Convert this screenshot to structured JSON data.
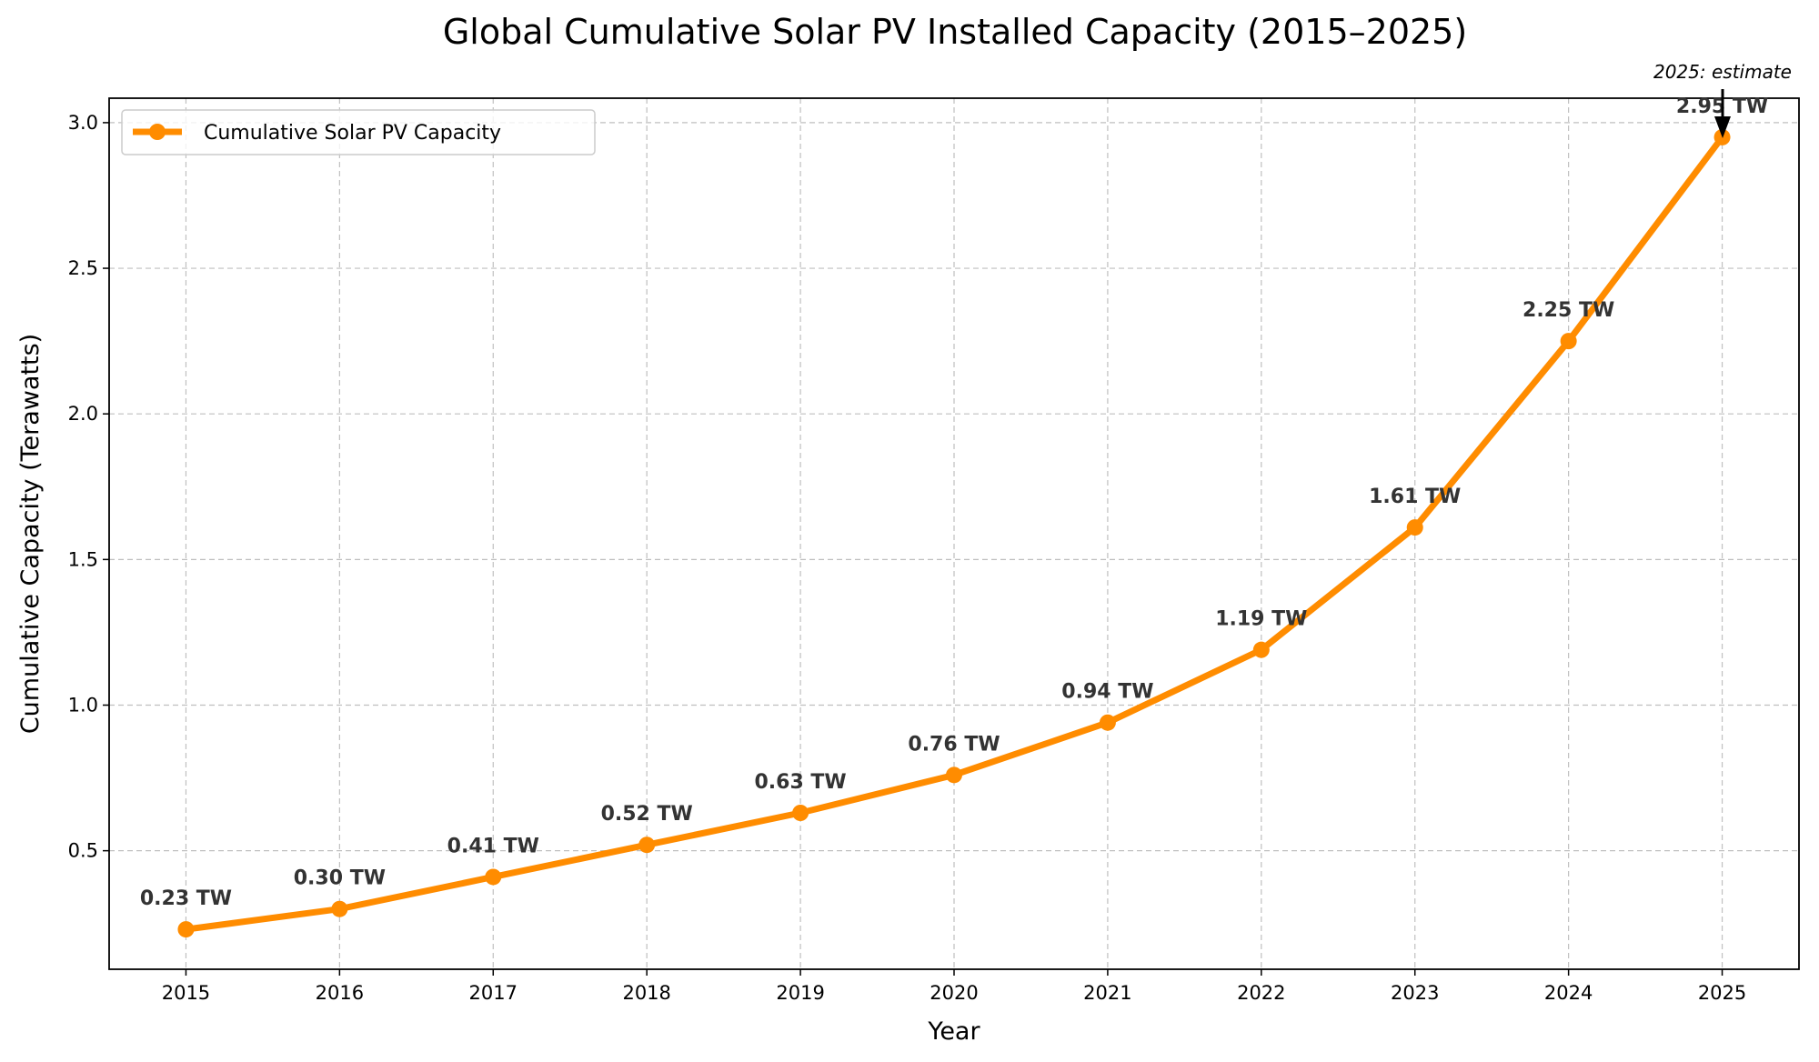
{
  "chart_data": {
    "type": "line",
    "title": "Global Cumulative Solar PV Installed Capacity (2015–2025)",
    "xlabel": "Year",
    "ylabel": "Cumulative Capacity (Terawatts)",
    "x": [
      2015,
      2016,
      2017,
      2018,
      2019,
      2020,
      2021,
      2022,
      2023,
      2024,
      2025
    ],
    "series": [
      {
        "name": "Cumulative Solar PV Capacity",
        "color": "#ff8c00",
        "values": [
          0.23,
          0.3,
          0.41,
          0.52,
          0.63,
          0.76,
          0.94,
          1.19,
          1.61,
          2.25,
          2.95
        ]
      }
    ],
    "data_labels": [
      "0.23 TW",
      "0.30 TW",
      "0.41 TW",
      "0.52 TW",
      "0.63 TW",
      "0.76 TW",
      "0.94 TW",
      "1.19 TW",
      "1.61 TW",
      "2.25 TW",
      "2.95 TW"
    ],
    "xticks": [
      "2015",
      "2016",
      "2017",
      "2018",
      "2019",
      "2020",
      "2021",
      "2022",
      "2023",
      "2024",
      "2025"
    ],
    "yticks": [
      "0.5",
      "1.0",
      "1.5",
      "2.0",
      "2.5",
      "3.0"
    ],
    "ytick_values": [
      0.5,
      1.0,
      1.5,
      2.0,
      2.5,
      3.0
    ],
    "xlim": [
      2014.5,
      2025.5
    ],
    "ylim": [
      0.093,
      3.084
    ],
    "grid": true,
    "legend_position": "top-left",
    "annotation": {
      "text": "2025: estimate",
      "x": 2025,
      "y": 2.95
    }
  }
}
